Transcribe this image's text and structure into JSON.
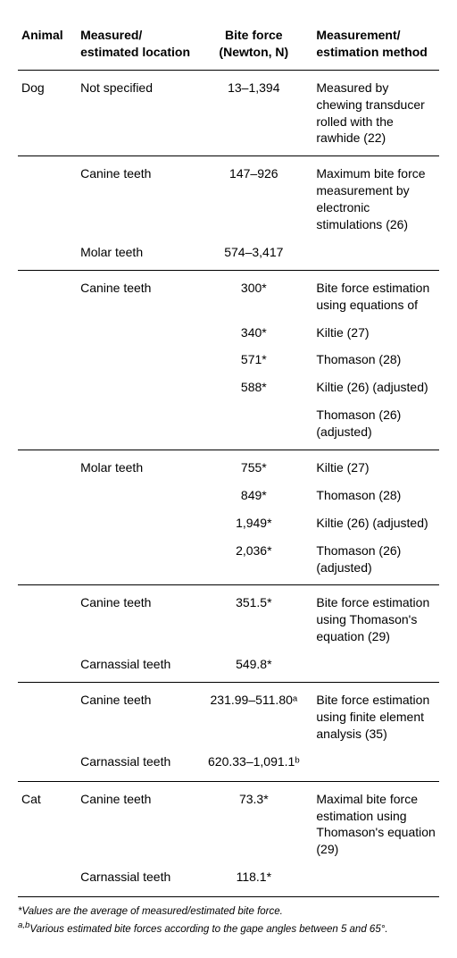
{
  "headers": {
    "animal": "Animal",
    "location": "Measured/ estimated location",
    "force": "Bite force (Newton, N)",
    "method": "Measurement/ estimation method"
  },
  "rows": [
    {
      "animal": "Dog",
      "location": "Not specified",
      "force": "13–1,394",
      "method": "Measured by chewing transducer rolled with the rawhide (22)",
      "group_start": true
    },
    {
      "location": "Canine teeth",
      "force": "147–926",
      "method": "Maximum bite force measurement by electronic stimulations (26)",
      "sep_before": true,
      "group_start": true
    },
    {
      "location": "Molar teeth",
      "force": "574–3,417"
    },
    {
      "location": "Canine teeth",
      "force": "300*",
      "method": "Bite force estimation using equations of",
      "sep_before": true,
      "group_start": true
    },
    {
      "force": "340*",
      "method": "Kiltie (27)"
    },
    {
      "force": "571*",
      "method": "Thomason (28)"
    },
    {
      "force": "588*",
      "method": "Kiltie (26) (adjusted)"
    },
    {
      "method": "Thomason (26) (adjusted)"
    },
    {
      "location": "Molar teeth",
      "force": "755*",
      "method": "Kiltie (27)",
      "sep_before": true,
      "group_start": true
    },
    {
      "force": "849*",
      "method": "Thomason (28)"
    },
    {
      "force": "1,949*",
      "method": "Kiltie (26) (adjusted)"
    },
    {
      "force": "2,036*",
      "method": "Thomason (26) (adjusted)"
    },
    {
      "location": "Canine teeth",
      "force": "351.5*",
      "method": "Bite force estimation using Thomason's equation (29)",
      "sep_before": true,
      "group_start": true
    },
    {
      "location": "Carnassial teeth",
      "force": "549.8*"
    },
    {
      "location": "Canine teeth",
      "force": "231.99–511.80ᵃ",
      "method": "Bite force estimation using finite element analysis (35)",
      "sep_before": true,
      "group_start": true
    },
    {
      "location": "Carnassial teeth",
      "force": "620.33–1,091.1ᵇ",
      "section_end": true
    },
    {
      "animal": "Cat",
      "location": "Canine teeth",
      "force": "73.3*",
      "method": "Maximal bite force estimation using Thomason's equation (29)",
      "group_start": true
    },
    {
      "location": "Carnassial teeth",
      "force": "118.1*",
      "section_end": true
    }
  ],
  "footnotes": {
    "a": "*Values are the average of measured/estimated bite force.",
    "b_prefix": "a,b",
    "b": "Various estimated bite forces according to the gape angles between 5 and 65°."
  }
}
